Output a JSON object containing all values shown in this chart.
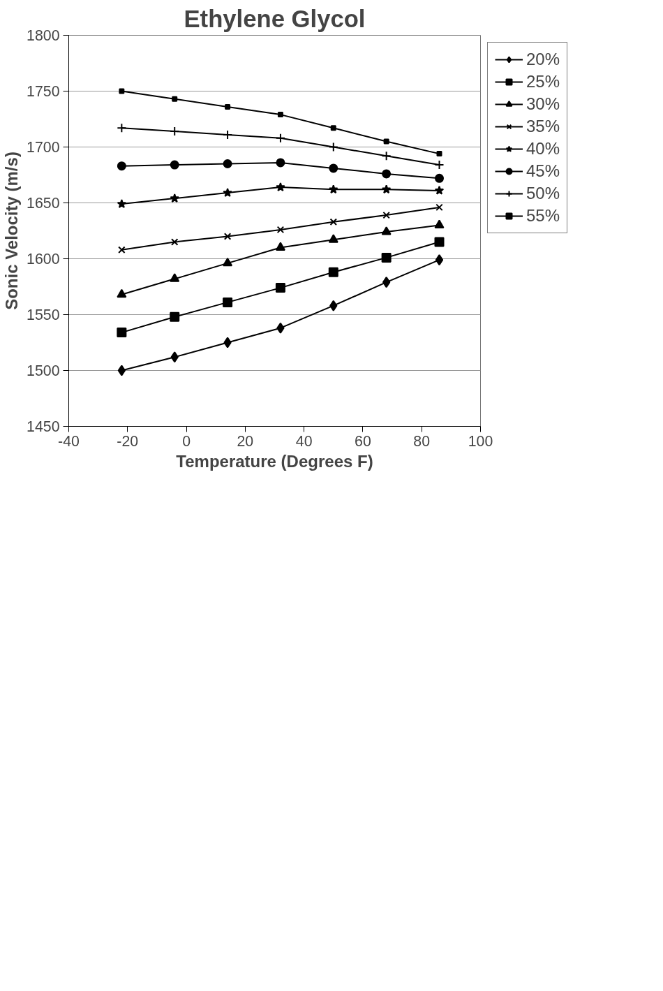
{
  "chart_data": {
    "type": "line",
    "title": "Ethylene Glycol",
    "xlabel": "Temperature (Degrees F)",
    "ylabel": "Sonic Velocity (m/s)",
    "x": [
      -22,
      -4,
      14,
      32,
      50,
      68,
      86
    ],
    "xlim": [
      -40,
      100
    ],
    "xticks": [
      -40,
      -20,
      0,
      20,
      40,
      60,
      80,
      100
    ],
    "ylim": [
      1450,
      1800
    ],
    "yticks": [
      1450,
      1500,
      1550,
      1600,
      1650,
      1700,
      1750,
      1800
    ],
    "grid": "y",
    "legend": "right",
    "line_style": "solid",
    "series": [
      {
        "name": "20%",
        "color": "#000000",
        "marker": "diamond",
        "values": [
          1500,
          1512,
          1525,
          1538,
          1558,
          1579,
          1599
        ]
      },
      {
        "name": "25%",
        "color": "#000000",
        "marker": "square",
        "values": [
          1534,
          1548,
          1561,
          1574,
          1588,
          1601,
          1615
        ]
      },
      {
        "name": "30%",
        "color": "#000000",
        "marker": "triangle",
        "values": [
          1568,
          1582,
          1596,
          1610,
          1617,
          1624,
          1630
        ]
      },
      {
        "name": "35%",
        "color": "#000000",
        "marker": "x",
        "values": [
          1608,
          1615,
          1620,
          1626,
          1633,
          1639,
          1646
        ]
      },
      {
        "name": "40%",
        "color": "#000000",
        "marker": "star",
        "values": [
          1649,
          1654,
          1659,
          1664,
          1662,
          1662,
          1661
        ]
      },
      {
        "name": "45%",
        "color": "#000000",
        "marker": "circle",
        "values": [
          1683,
          1684,
          1685,
          1686,
          1681,
          1676,
          1672
        ]
      },
      {
        "name": "50%",
        "color": "#000000",
        "marker": "cross",
        "values": [
          1717,
          1714,
          1711,
          1708,
          1700,
          1692,
          1684
        ]
      },
      {
        "name": "55%",
        "color": "#000000",
        "marker": "square",
        "values": [
          1750,
          1743,
          1736,
          1729,
          1717,
          1705,
          1694
        ]
      }
    ]
  }
}
